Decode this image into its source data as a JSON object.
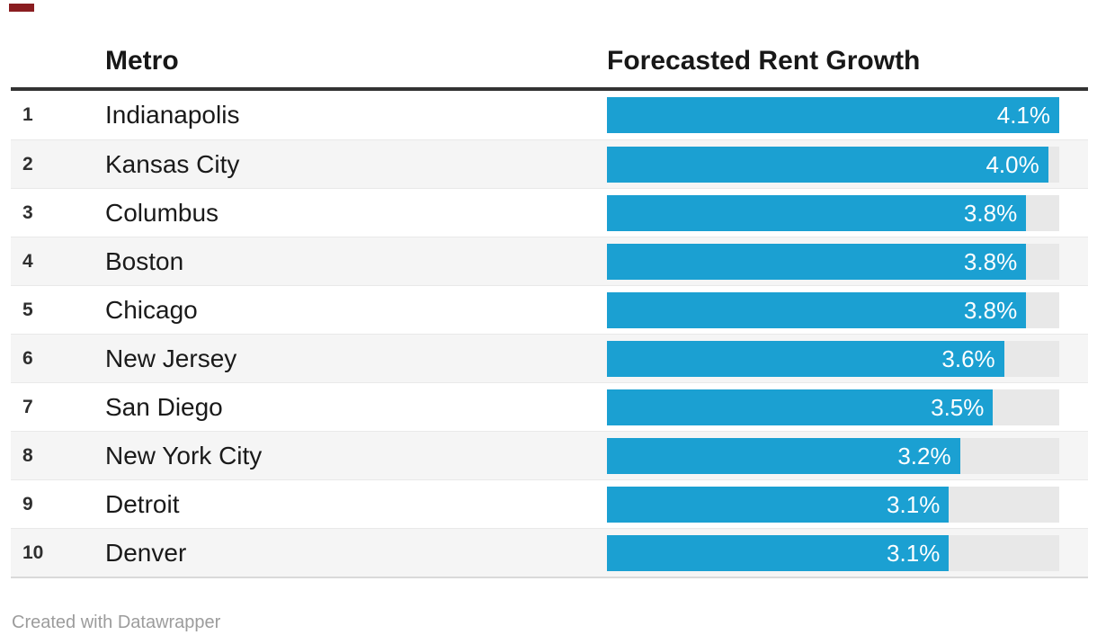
{
  "colors": {
    "accent": "#1ba0d2",
    "track": "#e8e8e8",
    "alt_row": "#f5f5f5",
    "header_rule": "#333333"
  },
  "table": {
    "columns": {
      "rank": "",
      "metro": "Metro",
      "value": "Forecasted Rent Growth"
    },
    "rows": [
      {
        "rank": "1",
        "metro": "Indianapolis",
        "value": 4.1,
        "label": "4.1%"
      },
      {
        "rank": "2",
        "metro": "Kansas City",
        "value": 4.0,
        "label": "4.0%"
      },
      {
        "rank": "3",
        "metro": "Columbus",
        "value": 3.8,
        "label": "3.8%"
      },
      {
        "rank": "4",
        "metro": "Boston",
        "value": 3.8,
        "label": "3.8%"
      },
      {
        "rank": "5",
        "metro": "Chicago",
        "value": 3.8,
        "label": "3.8%"
      },
      {
        "rank": "6",
        "metro": "New Jersey",
        "value": 3.6,
        "label": "3.6%"
      },
      {
        "rank": "7",
        "metro": "San Diego",
        "value": 3.5,
        "label": "3.5%"
      },
      {
        "rank": "8",
        "metro": "New York City",
        "value": 3.2,
        "label": "3.2%"
      },
      {
        "rank": "9",
        "metro": "Detroit",
        "value": 3.1,
        "label": "3.1%"
      },
      {
        "rank": "10",
        "metro": "Denver",
        "value": 3.1,
        "label": "3.1%"
      }
    ]
  },
  "footer": {
    "credit": "Created with Datawrapper"
  },
  "chart_data": {
    "type": "bar",
    "orientation": "horizontal",
    "columns": [
      "Metro",
      "Forecasted Rent Growth"
    ],
    "ranks": [
      1,
      2,
      3,
      4,
      5,
      6,
      7,
      8,
      9,
      10
    ],
    "categories": [
      "Indianapolis",
      "Kansas City",
      "Columbus",
      "Boston",
      "Chicago",
      "New Jersey",
      "San Diego",
      "New York City",
      "Detroit",
      "Denver"
    ],
    "values": [
      4.1,
      4.0,
      3.8,
      3.8,
      3.8,
      3.6,
      3.5,
      3.2,
      3.1,
      3.1
    ],
    "value_labels": [
      "4.1%",
      "4.0%",
      "3.8%",
      "3.8%",
      "3.8%",
      "3.6%",
      "3.5%",
      "3.2%",
      "3.1%",
      "3.1%"
    ],
    "unit": "%",
    "xlim": [
      0,
      4.1
    ],
    "grid": false,
    "legend": "none",
    "bar_color": "#1ba0d2",
    "track_color": "#e8e8e8",
    "zebra_striping": true,
    "credit": "Created with Datawrapper"
  }
}
